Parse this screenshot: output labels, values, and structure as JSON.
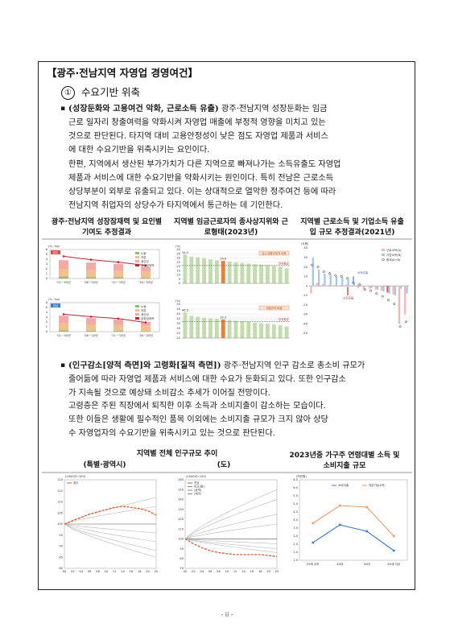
{
  "heading": "【광주·전남지역 자영업 경영여건】",
  "subsection": {
    "number": "①",
    "title": "수요기반 위축"
  },
  "para1": {
    "lead": "(성장둔화와 고용여건 악화, 근로소득 유출)",
    "lines": [
      " 광주·전남지역 성장둔화는 임금",
      "근로 일자리 창출여력을 약화시켜 자영업 매출에 부정적 영향을 미치고 있는",
      "것으로 판단된다. 타지역 대비 고용안정성이 낮은 점도 자영업 제품과 서비스",
      "에 대한 수요기반을 위축시키는 요인이다."
    ]
  },
  "para2": {
    "lines": [
      "한편, 지역에서 생산된 부가가치가 다른 지역으로 빠져나가는 소득유출도 자영업",
      "제품과 서비스에 대한 수요기반을 약화시키는 원인이다. 특히 전남은 근로소득",
      "상당부분이 외부로 유출되고 있다. 이는 상대적으로 열악한 정주여건 등에 따라",
      "전남지역 취업자의 상당수가 타지역에서 통근하는 데 기인한다."
    ]
  },
  "fig_row1": [
    {
      "title": "광주·전남지역 성장잠재력 및 요인별 기여도 추정결과"
    },
    {
      "title": "지역별 임금근로자의 종사상지위와 근로형태(2023년)"
    },
    {
      "title": "지역별 근로소득 및 기업소득 유출입 규모 추정결과(2021년)"
    }
  ],
  "para3": {
    "lead": "(인구감소[양적 측면]와 고령화[질적 측면])",
    "lines": [
      " 광주·전남지역 인구 감소로 총소비 규모가",
      "줄어듦에 따라 자영업 제품과 서비스에 대한 수요가 둔화되고 있다. 또한 인구감소",
      "가 지속될 것으로 예상돼 소비감소 추세가 이어질 전망이다."
    ]
  },
  "para4": {
    "lines": [
      "고령층은 주된 직장에서 퇴직한 이후 소득과 소비지출이 감소하는 모습이다.",
      "또한 이들은 생활에 필수적인 품목 이외에는 소비지출 규모가 크지 않아 상당",
      "수 자영업자의 수요기반을 위축시키고 있는 것으로 판단된다."
    ]
  },
  "fig_row2": [
    {
      "title": "지역별 전체 인구규모 추이",
      "left": "(특별·광역시)",
      "right": "(도)"
    },
    {
      "title": "2023년중 가구주 연령대별 소득 및 소비지출 규모"
    }
  ],
  "page_number": "- ii -",
  "chart_data": [
    {
      "type": "bar",
      "id": "potential-growth-gwangju",
      "panel_label": "광주",
      "yunit": "(%, %p)",
      "categories": [
        "'01~'05년",
        "'06~'10년",
        "'11~'15년",
        "'16~'20년"
      ],
      "series": [
        {
          "name": "노동",
          "values": [
            0.4,
            0.3,
            0.3,
            0.2
          ]
        },
        {
          "name": "자본",
          "values": [
            1.6,
            1.4,
            1.3,
            1.2
          ]
        },
        {
          "name": "생산성",
          "values": [
            1.8,
            1.6,
            1.4,
            1.0
          ]
        },
        {
          "name": "성장잠재력",
          "values": [
            4.6,
            3.9,
            3.4,
            2.7
          ]
        }
      ],
      "ylim": [
        0,
        6
      ]
    },
    {
      "type": "bar",
      "id": "potential-growth-jeonnam",
      "panel_label": "전남",
      "yunit": "(%, %p)",
      "categories": [
        "'01~'05년",
        "'06~'10년",
        "'11~'15년",
        "'16~'20년"
      ],
      "series": [
        {
          "name": "노동",
          "values": [
            0.3,
            0.2,
            0.2,
            0.1
          ]
        },
        {
          "name": "자본",
          "values": [
            1.4,
            1.3,
            1.2,
            1.1
          ]
        },
        {
          "name": "생산성",
          "values": [
            1.6,
            1.3,
            1.1,
            0.8
          ]
        },
        {
          "name": "성장잠재력",
          "values": [
            3.6,
            3.1,
            2.7,
            1.9
          ]
        }
      ],
      "ylim": [
        0,
        6
      ]
    },
    {
      "type": "bar",
      "id": "temporary-workers",
      "yunit": "(%)",
      "badge": "임시·일용근로자 비중",
      "ref_label": "전국평균",
      "ref_value": 21.1,
      "highlight_label": "26.6",
      "top_label": "34.0",
      "values": [
        34.0,
        31.5,
        30.8,
        29.9,
        28.5,
        27.3,
        26.6,
        25.9,
        24.8,
        24.0,
        23.4,
        22.6,
        21.9,
        21.0,
        20.4,
        19.6,
        17.8
      ],
      "highlight_index": 6,
      "ylim": [
        0,
        40
      ]
    },
    {
      "type": "bar",
      "id": "nonregular-workers",
      "yunit": "(%)",
      "badge": "비정규직 비중",
      "ref_label": "전국평균",
      "ref_value": 37.0,
      "highlight_label": "39.3",
      "top_label": "46.5",
      "values": [
        46.5,
        43.0,
        42.0,
        41.2,
        40.6,
        40.0,
        39.3,
        38.7,
        38.0,
        37.5,
        36.9,
        36.0,
        35.4,
        34.8,
        34.0,
        33.2,
        32.0
      ],
      "highlight_index": 6,
      "ylim": [
        20,
        55
      ]
    },
    {
      "type": "bar",
      "id": "income-outflow",
      "yunit": "(조원)",
      "legend": [
        "근로소득(A)",
        "기업소득(B)",
        "합계(A+B)"
      ],
      "annotations": [
        "소득유출",
        "소득유출"
      ],
      "series": [
        {
          "name": "근로소득(A)",
          "values": [
            -8,
            3,
            2,
            1,
            1,
            1,
            1,
            -1,
            -2,
            -4,
            -3,
            -4,
            -5,
            -7,
            -9,
            -40,
            -30
          ]
        },
        {
          "name": "기업소득(B)",
          "values": [
            30,
            17,
            13,
            12,
            10,
            9,
            7,
            4,
            3,
            0,
            -2,
            -4,
            -6,
            -8,
            -10,
            -3,
            -8
          ]
        },
        {
          "name": "합계(A+B)",
          "values": [
            22,
            20,
            15,
            13,
            11,
            10,
            8,
            3,
            1,
            -4,
            -5,
            -8,
            -11,
            -15,
            -19,
            -43,
            -38
          ]
        }
      ],
      "highlight_index": 13,
      "ylim": [
        -50,
        40
      ]
    },
    {
      "type": "line",
      "id": "population-metro",
      "yunit": "(2000년=100)",
      "legend": [
        "광주"
      ],
      "x": [
        "00",
        "02",
        "04",
        "06",
        "08",
        "10",
        "12",
        "14",
        "16",
        "18",
        "20",
        "22"
      ],
      "ylim": [
        80,
        120
      ],
      "series": [
        {
          "name": "광주",
          "values": [
            100,
            101.5,
            103,
            104.5,
            105.5,
            106.5,
            107.5,
            108,
            107.5,
            107,
            106,
            104
          ]
        }
      ]
    },
    {
      "type": "line",
      "id": "population-province",
      "yunit": "(2000년=100)",
      "legend": [
        "전남",
        "비교(평)",
        "(광역)",
        "(제주)"
      ],
      "x": [
        "00",
        "02",
        "04",
        "06",
        "08",
        "10",
        "12",
        "14",
        "16",
        "18",
        "20",
        "22"
      ],
      "ylim": [
        70,
        160
      ],
      "series": [
        {
          "name": "전남",
          "values": [
            100,
            95,
            91,
            88,
            86,
            85,
            84,
            84,
            84,
            84,
            83,
            82
          ]
        }
      ]
    },
    {
      "type": "line",
      "id": "income-spending-by-age",
      "yunit": "(백만원)",
      "categories": [
        "29세 이하",
        "40대",
        "50대",
        "60세 이상"
      ],
      "series": [
        {
          "name": "소비지출",
          "values": [
            2.6,
            3.7,
            3.3,
            2.1
          ]
        },
        {
          "name": "처분가능소득",
          "values": [
            3.8,
            4.9,
            4.8,
            3.0
          ]
        }
      ],
      "ylim": [
        1.5,
        6.5
      ]
    }
  ]
}
